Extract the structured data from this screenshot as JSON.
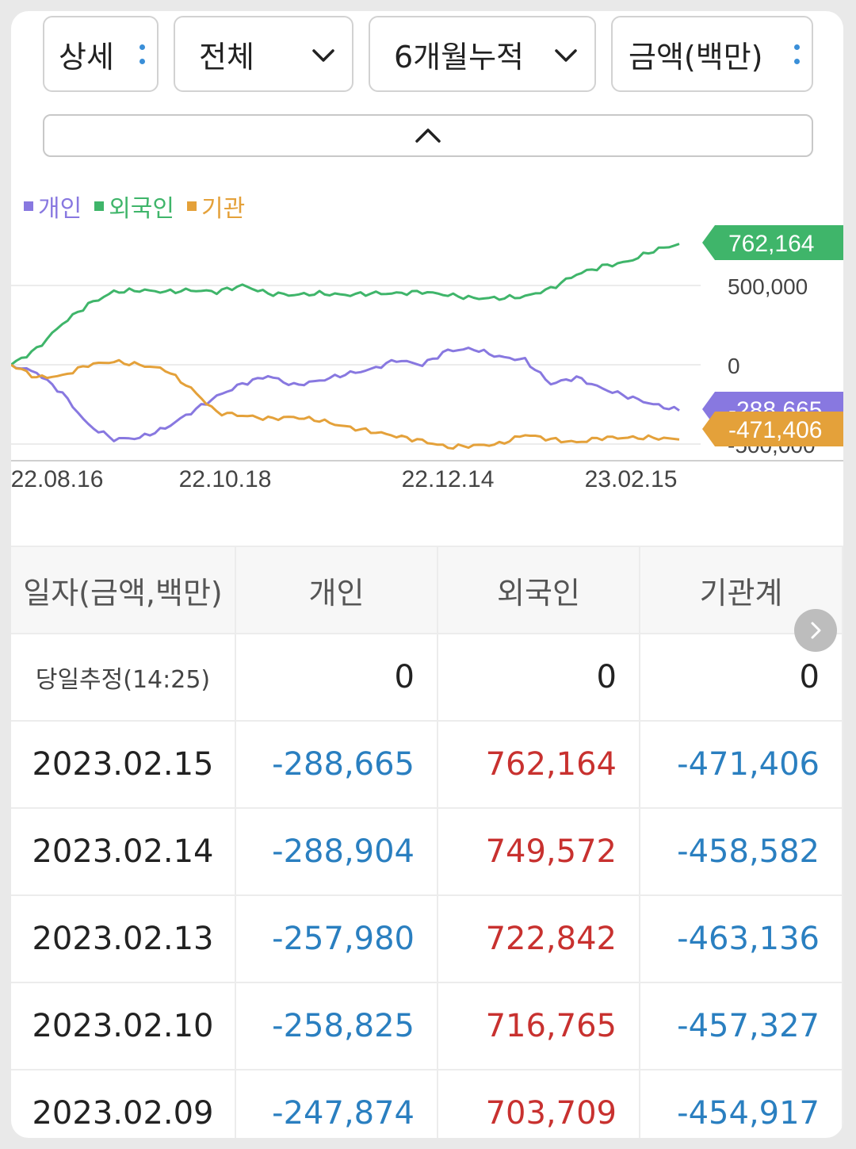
{
  "filters": {
    "detail_label": "상세",
    "scope_label": "전체",
    "period_label": "6개월누적",
    "unit_label": "금액(백만)"
  },
  "legend": [
    {
      "label": "개인",
      "color": "#8878e0"
    },
    {
      "label": "외국인",
      "color": "#3fb56a"
    },
    {
      "label": "기관",
      "color": "#e4a13a"
    }
  ],
  "chart_data": {
    "type": "line",
    "x_ticks": [
      "22.08.16",
      "22.10.18",
      "22.12.14",
      "23.02.15"
    ],
    "y_ticks": [
      "500,000",
      "0",
      "-500,000"
    ],
    "ylim": [
      -520000,
      800000
    ],
    "grid": true,
    "series": [
      {
        "name": "외국인",
        "color": "#3fb56a",
        "values": [
          0,
          100000,
          260000,
          380000,
          460000,
          470000,
          460000,
          470000,
          460000,
          500000,
          450000,
          440000,
          450000,
          440000,
          450000,
          450000,
          460000,
          440000,
          420000,
          420000,
          430000,
          480000,
          570000,
          620000,
          650000,
          720000,
          762164
        ]
      },
      {
        "name": "개인",
        "color": "#8878e0",
        "values": [
          0,
          -50000,
          -180000,
          -380000,
          -470000,
          -460000,
          -400000,
          -300000,
          -200000,
          -120000,
          -70000,
          -130000,
          -100000,
          -60000,
          -30000,
          30000,
          0,
          90000,
          100000,
          50000,
          30000,
          -120000,
          -80000,
          -150000,
          -200000,
          -250000,
          -288665
        ]
      },
      {
        "name": "기관",
        "color": "#e4a13a",
        "values": [
          0,
          -80000,
          -70000,
          0,
          20000,
          0,
          -30000,
          -150000,
          -300000,
          -320000,
          -340000,
          -330000,
          -350000,
          -390000,
          -420000,
          -450000,
          -480000,
          -520000,
          -510000,
          -500000,
          -440000,
          -470000,
          -490000,
          -460000,
          -460000,
          -460000,
          -471406
        ]
      }
    ],
    "end_labels": [
      "762,164",
      "-288,665",
      "-471,406"
    ]
  },
  "table": {
    "headers": [
      "일자(금액,백만)",
      "개인",
      "외국인",
      "기관계"
    ],
    "rows": [
      {
        "date": "당일추정(14:25)",
        "individual": "0",
        "foreign": "0",
        "institution": "0"
      },
      {
        "date": "2023.02.15",
        "individual": "-288,665",
        "foreign": "762,164",
        "institution": "-471,406"
      },
      {
        "date": "2023.02.14",
        "individual": "-288,904",
        "foreign": "749,572",
        "institution": "-458,582"
      },
      {
        "date": "2023.02.13",
        "individual": "-257,980",
        "foreign": "722,842",
        "institution": "-463,136"
      },
      {
        "date": "2023.02.10",
        "individual": "-258,825",
        "foreign": "716,765",
        "institution": "-457,327"
      },
      {
        "date": "2023.02.09",
        "individual": "-247,874",
        "foreign": "703,709",
        "institution": "-454,917"
      }
    ]
  }
}
